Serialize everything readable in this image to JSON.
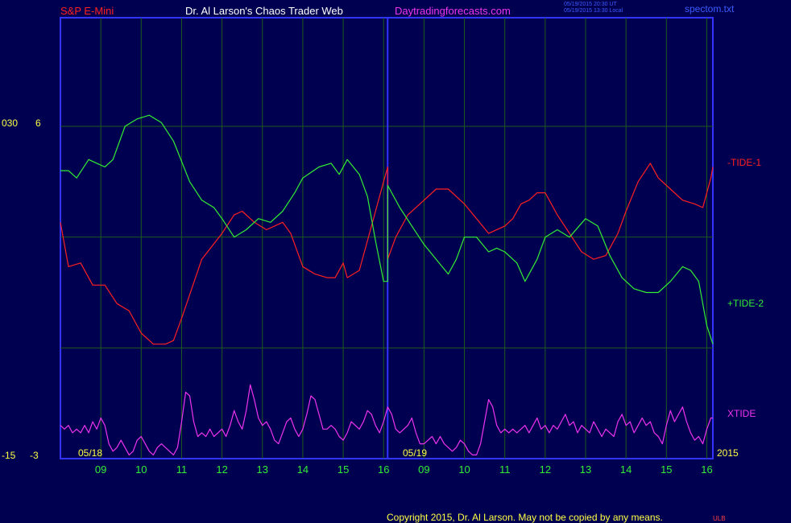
{
  "header": {
    "symbol": "S&P E-Mini",
    "title": "Dr. Al Larson's Chaos Trader Web",
    "site": "Daytradingforecasts.com",
    "timestamp_ut": "05/19/2015 20:30 UT",
    "timestamp_local": "05/19/2015 13:30 Local",
    "file": "spectom.txt"
  },
  "footer": {
    "copyright": "Copyright 2015, Dr. Al Larson. May not be copied by any means.",
    "mark": "ULB"
  },
  "colors": {
    "background": "#000050",
    "frame": "#3333ff",
    "grid": "#1d5a1d",
    "tide1": "#ff2020",
    "tide2": "#33ee33",
    "xtide": "#ee33ee",
    "date_label": "#ffff44"
  },
  "chart_data": {
    "type": "line",
    "x_tick_labels": [
      "09",
      "10",
      "11",
      "12",
      "13",
      "14",
      "15",
      "16",
      "09",
      "10",
      "11",
      "12",
      "13",
      "14",
      "15",
      "16"
    ],
    "date_labels": [
      "05/18",
      "05/19"
    ],
    "year_label": "2015",
    "y_axis_labels": {
      "left_top": "030",
      "left_top_value": "6",
      "left_bottom": "-15",
      "left_bottom_value": "-3"
    },
    "grid": true,
    "y_range": [
      -3,
      6
    ],
    "x_range": [
      8,
      24.15
    ],
    "day_divider_x": 16.1,
    "series": [
      {
        "name": "-TIDE-1",
        "color": "#ff2020",
        "points": [
          [
            8,
            3.4
          ],
          [
            8.2,
            2.2
          ],
          [
            8.5,
            2.3
          ],
          [
            8.8,
            1.7
          ],
          [
            9.1,
            1.7
          ],
          [
            9.4,
            1.2
          ],
          [
            9.7,
            1.0
          ],
          [
            10.0,
            0.4
          ],
          [
            10.3,
            0.1
          ],
          [
            10.6,
            0.1
          ],
          [
            10.8,
            0.2
          ],
          [
            11.0,
            0.8
          ],
          [
            11.5,
            2.4
          ],
          [
            12.0,
            3.1
          ],
          [
            12.3,
            3.6
          ],
          [
            12.5,
            3.7
          ],
          [
            12.8,
            3.4
          ],
          [
            13.1,
            3.2
          ],
          [
            13.5,
            3.4
          ],
          [
            13.7,
            3.1
          ],
          [
            14.0,
            2.2
          ],
          [
            14.3,
            2.0
          ],
          [
            14.6,
            1.9
          ],
          [
            14.8,
            1.9
          ],
          [
            15.0,
            2.3
          ],
          [
            15.1,
            1.9
          ],
          [
            15.4,
            2.1
          ],
          [
            15.7,
            3.3
          ],
          [
            16.0,
            4.5
          ],
          [
            16.1,
            4.9
          ],
          [
            16.1,
            2.4
          ],
          [
            16.3,
            3.0
          ],
          [
            16.6,
            3.6
          ],
          [
            17.0,
            4.0
          ],
          [
            17.3,
            4.3
          ],
          [
            17.6,
            4.3
          ],
          [
            17.8,
            4.1
          ],
          [
            18.0,
            3.9
          ],
          [
            18.3,
            3.5
          ],
          [
            18.6,
            3.1
          ],
          [
            19.0,
            3.3
          ],
          [
            19.2,
            3.5
          ],
          [
            19.4,
            3.9
          ],
          [
            19.6,
            4.0
          ],
          [
            19.8,
            4.2
          ],
          [
            20.0,
            4.2
          ],
          [
            20.3,
            3.6
          ],
          [
            20.6,
            3.1
          ],
          [
            20.9,
            2.6
          ],
          [
            21.2,
            2.4
          ],
          [
            21.5,
            2.5
          ],
          [
            21.8,
            3.1
          ],
          [
            22.0,
            3.7
          ],
          [
            22.3,
            4.5
          ],
          [
            22.6,
            5.0
          ],
          [
            22.8,
            4.6
          ],
          [
            23.1,
            4.3
          ],
          [
            23.4,
            4.0
          ],
          [
            23.7,
            3.9
          ],
          [
            23.9,
            3.8
          ],
          [
            24.1,
            4.6
          ],
          [
            24.15,
            4.9
          ]
        ]
      },
      {
        "name": "+TIDE-2",
        "color": "#33ee33",
        "points": [
          [
            8,
            4.8
          ],
          [
            8.2,
            4.8
          ],
          [
            8.4,
            4.6
          ],
          [
            8.7,
            5.1
          ],
          [
            8.9,
            5.0
          ],
          [
            9.1,
            4.9
          ],
          [
            9.3,
            5.1
          ],
          [
            9.6,
            6.0
          ],
          [
            9.9,
            6.2
          ],
          [
            10.2,
            6.3
          ],
          [
            10.5,
            6.1
          ],
          [
            10.8,
            5.6
          ],
          [
            11.2,
            4.5
          ],
          [
            11.5,
            4.0
          ],
          [
            11.8,
            3.8
          ],
          [
            12.0,
            3.5
          ],
          [
            12.3,
            3.0
          ],
          [
            12.6,
            3.2
          ],
          [
            12.9,
            3.5
          ],
          [
            13.2,
            3.4
          ],
          [
            13.5,
            3.7
          ],
          [
            13.8,
            4.2
          ],
          [
            14.0,
            4.6
          ],
          [
            14.4,
            4.9
          ],
          [
            14.7,
            5.0
          ],
          [
            14.9,
            4.7
          ],
          [
            15.1,
            5.1
          ],
          [
            15.4,
            4.7
          ],
          [
            15.6,
            4.1
          ],
          [
            15.8,
            2.9
          ],
          [
            16.0,
            1.8
          ],
          [
            16.1,
            1.8
          ],
          [
            16.1,
            4.4
          ],
          [
            16.4,
            3.8
          ],
          [
            16.7,
            3.3
          ],
          [
            17.0,
            2.8
          ],
          [
            17.3,
            2.4
          ],
          [
            17.6,
            2.0
          ],
          [
            17.8,
            2.4
          ],
          [
            18.0,
            3.0
          ],
          [
            18.3,
            3.0
          ],
          [
            18.6,
            2.6
          ],
          [
            18.8,
            2.7
          ],
          [
            19.0,
            2.6
          ],
          [
            19.3,
            2.3
          ],
          [
            19.5,
            1.8
          ],
          [
            19.8,
            2.4
          ],
          [
            20.0,
            3.0
          ],
          [
            20.3,
            3.2
          ],
          [
            20.6,
            3.0
          ],
          [
            21.0,
            3.5
          ],
          [
            21.3,
            3.3
          ],
          [
            21.6,
            2.5
          ],
          [
            21.9,
            1.9
          ],
          [
            22.2,
            1.6
          ],
          [
            22.5,
            1.5
          ],
          [
            22.8,
            1.5
          ],
          [
            23.1,
            1.8
          ],
          [
            23.4,
            2.2
          ],
          [
            23.6,
            2.1
          ],
          [
            23.8,
            1.8
          ],
          [
            24.0,
            0.6
          ],
          [
            24.15,
            0.1
          ]
        ]
      },
      {
        "name": "XTIDE",
        "color": "#ee33ee",
        "points": [
          [
            8,
            -2.1
          ],
          [
            8.1,
            -2.2
          ],
          [
            8.2,
            -2.1
          ],
          [
            8.3,
            -2.3
          ],
          [
            8.4,
            -2.2
          ],
          [
            8.5,
            -2.3
          ],
          [
            8.6,
            -2.1
          ],
          [
            8.7,
            -2.3
          ],
          [
            8.8,
            -2.0
          ],
          [
            8.9,
            -2.2
          ],
          [
            9.0,
            -1.9
          ],
          [
            9.1,
            -2.1
          ],
          [
            9.2,
            -2.6
          ],
          [
            9.3,
            -2.8
          ],
          [
            9.4,
            -2.7
          ],
          [
            9.5,
            -2.5
          ],
          [
            9.6,
            -2.7
          ],
          [
            9.7,
            -2.9
          ],
          [
            9.8,
            -2.8
          ],
          [
            9.9,
            -2.5
          ],
          [
            10.0,
            -2.4
          ],
          [
            10.1,
            -2.6
          ],
          [
            10.2,
            -2.8
          ],
          [
            10.3,
            -2.9
          ],
          [
            10.4,
            -2.7
          ],
          [
            10.5,
            -2.6
          ],
          [
            10.6,
            -2.7
          ],
          [
            10.7,
            -2.8
          ],
          [
            10.8,
            -2.9
          ],
          [
            10.9,
            -2.7
          ],
          [
            11.0,
            -2.0
          ],
          [
            11.1,
            -1.2
          ],
          [
            11.2,
            -1.3
          ],
          [
            11.3,
            -2.0
          ],
          [
            11.4,
            -2.4
          ],
          [
            11.5,
            -2.3
          ],
          [
            11.6,
            -2.4
          ],
          [
            11.7,
            -2.2
          ],
          [
            11.8,
            -2.4
          ],
          [
            11.9,
            -2.3
          ],
          [
            12.0,
            -2.2
          ],
          [
            12.1,
            -2.4
          ],
          [
            12.2,
            -2.1
          ],
          [
            12.3,
            -1.7
          ],
          [
            12.4,
            -2.0
          ],
          [
            12.5,
            -2.2
          ],
          [
            12.6,
            -1.7
          ],
          [
            12.7,
            -1.0
          ],
          [
            12.8,
            -1.4
          ],
          [
            12.9,
            -1.9
          ],
          [
            13.0,
            -2.1
          ],
          [
            13.1,
            -2.0
          ],
          [
            13.2,
            -2.2
          ],
          [
            13.3,
            -2.5
          ],
          [
            13.4,
            -2.6
          ],
          [
            13.5,
            -2.3
          ],
          [
            13.6,
            -2.0
          ],
          [
            13.7,
            -1.9
          ],
          [
            13.8,
            -2.2
          ],
          [
            13.9,
            -2.4
          ],
          [
            14.0,
            -2.2
          ],
          [
            14.1,
            -1.8
          ],
          [
            14.2,
            -1.3
          ],
          [
            14.3,
            -1.4
          ],
          [
            14.4,
            -1.8
          ],
          [
            14.5,
            -2.2
          ],
          [
            14.6,
            -2.2
          ],
          [
            14.7,
            -2.1
          ],
          [
            14.8,
            -2.2
          ],
          [
            14.9,
            -2.4
          ],
          [
            15.0,
            -2.5
          ],
          [
            15.1,
            -2.3
          ],
          [
            15.2,
            -2.0
          ],
          [
            15.3,
            -2.1
          ],
          [
            15.4,
            -2.2
          ],
          [
            15.5,
            -2.0
          ],
          [
            15.6,
            -1.7
          ],
          [
            15.7,
            -1.8
          ],
          [
            15.8,
            -2.1
          ],
          [
            15.9,
            -2.3
          ],
          [
            16.0,
            -2.0
          ],
          [
            16.1,
            -1.6
          ],
          [
            16.2,
            -1.8
          ],
          [
            16.3,
            -2.2
          ],
          [
            16.4,
            -2.3
          ],
          [
            16.5,
            -2.2
          ],
          [
            16.6,
            -2.1
          ],
          [
            16.7,
            -1.9
          ],
          [
            16.8,
            -2.3
          ],
          [
            16.9,
            -2.6
          ],
          [
            17.0,
            -2.6
          ],
          [
            17.1,
            -2.5
          ],
          [
            17.2,
            -2.4
          ],
          [
            17.3,
            -2.6
          ],
          [
            17.4,
            -2.4
          ],
          [
            17.5,
            -2.6
          ],
          [
            17.6,
            -2.7
          ],
          [
            17.7,
            -2.8
          ],
          [
            17.8,
            -2.7
          ],
          [
            17.9,
            -2.5
          ],
          [
            18.0,
            -2.6
          ],
          [
            18.1,
            -2.8
          ],
          [
            18.2,
            -2.9
          ],
          [
            18.3,
            -2.9
          ],
          [
            18.4,
            -2.6
          ],
          [
            18.5,
            -2.0
          ],
          [
            18.6,
            -1.4
          ],
          [
            18.7,
            -1.6
          ],
          [
            18.8,
            -2.1
          ],
          [
            18.9,
            -2.3
          ],
          [
            19.0,
            -2.2
          ],
          [
            19.1,
            -2.3
          ],
          [
            19.2,
            -2.2
          ],
          [
            19.3,
            -2.3
          ],
          [
            19.4,
            -2.2
          ],
          [
            19.5,
            -2.1
          ],
          [
            19.6,
            -2.3
          ],
          [
            19.7,
            -2.1
          ],
          [
            19.8,
            -1.9
          ],
          [
            19.9,
            -2.2
          ],
          [
            20.0,
            -2.1
          ],
          [
            20.1,
            -2.3
          ],
          [
            20.2,
            -2.1
          ],
          [
            20.3,
            -2.2
          ],
          [
            20.4,
            -2.0
          ],
          [
            20.5,
            -1.8
          ],
          [
            20.6,
            -2.1
          ],
          [
            20.7,
            -2.0
          ],
          [
            20.8,
            -2.3
          ],
          [
            20.9,
            -2.1
          ],
          [
            21.0,
            -2.2
          ],
          [
            21.1,
            -2.3
          ],
          [
            21.2,
            -2.0
          ],
          [
            21.3,
            -2.2
          ],
          [
            21.4,
            -2.4
          ],
          [
            21.5,
            -2.2
          ],
          [
            21.6,
            -2.3
          ],
          [
            21.7,
            -2.4
          ],
          [
            21.8,
            -2.0
          ],
          [
            21.9,
            -1.8
          ],
          [
            22.0,
            -2.1
          ],
          [
            22.1,
            -2.0
          ],
          [
            22.2,
            -2.3
          ],
          [
            22.3,
            -2.1
          ],
          [
            22.4,
            -1.9
          ],
          [
            22.5,
            -2.1
          ],
          [
            22.6,
            -2.0
          ],
          [
            22.7,
            -2.3
          ],
          [
            22.8,
            -2.4
          ],
          [
            22.9,
            -2.6
          ],
          [
            23.0,
            -2.1
          ],
          [
            23.1,
            -1.7
          ],
          [
            23.2,
            -2.0
          ],
          [
            23.3,
            -1.8
          ],
          [
            23.4,
            -1.6
          ],
          [
            23.5,
            -2.0
          ],
          [
            23.6,
            -2.3
          ],
          [
            23.7,
            -2.5
          ],
          [
            23.8,
            -2.4
          ],
          [
            23.9,
            -2.6
          ],
          [
            24.0,
            -2.2
          ],
          [
            24.1,
            -1.9
          ],
          [
            24.15,
            -1.9
          ]
        ]
      }
    ]
  }
}
